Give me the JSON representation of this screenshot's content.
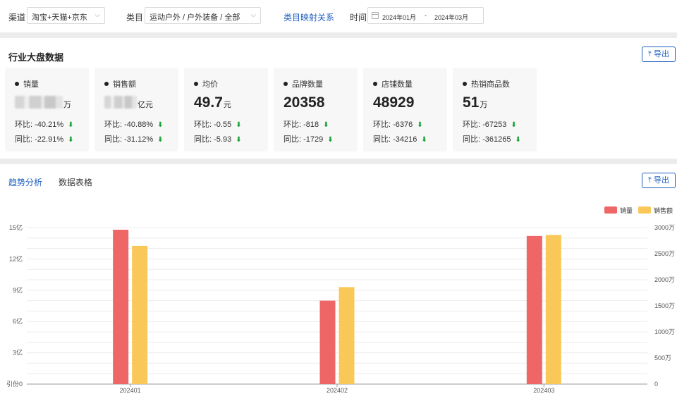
{
  "filters": {
    "channel_label": "渠道",
    "channel_value": "淘宝+天猫+京东",
    "category_label": "类目",
    "category_value": "运动户外 / 户外装备 / 全部",
    "mapping_link": "类目映射关系",
    "time_label": "时间",
    "date_start": "2024年01月",
    "date_sep": "-",
    "date_end": "2024年03月"
  },
  "overview": {
    "title": "行业大盘数据",
    "export_label": "导出",
    "metrics": [
      {
        "name": "销量",
        "value": "",
        "unit": "万",
        "hb_label": "环比:",
        "hb": "-40.21%",
        "tb_label": "同比:",
        "tb": "-22.91%",
        "blurred": true
      },
      {
        "name": "销售额",
        "value": "",
        "unit": "亿元",
        "hb_label": "环比:",
        "hb": "-40.88%",
        "tb_label": "同比:",
        "tb": "-31.12%",
        "blurred": true
      },
      {
        "name": "均价",
        "value": "49.7",
        "unit": "元",
        "hb_label": "环比:",
        "hb": "-0.55",
        "tb_label": "同比:",
        "tb": "-5.93"
      },
      {
        "name": "品牌数量",
        "value": "20358",
        "unit": "",
        "hb_label": "环比:",
        "hb": "-818",
        "tb_label": "同比:",
        "tb": "-1729"
      },
      {
        "name": "店铺数量",
        "value": "48929",
        "unit": "",
        "hb_label": "环比:",
        "hb": "-6376",
        "tb_label": "同比:",
        "tb": "-34216"
      },
      {
        "name": "热销商品数",
        "value": "51",
        "unit": "万",
        "hb_label": "环比:",
        "hb": "-67253",
        "tb_label": "同比:",
        "tb": "-361265"
      }
    ]
  },
  "trend": {
    "tab_trend": "趋势分析",
    "tab_table": "数据表格",
    "export_label": "导出"
  },
  "chart_data": {
    "type": "bar",
    "categories": [
      "202401",
      "202402",
      "202403"
    ],
    "series": [
      {
        "name": "销量",
        "axis": "left",
        "color": "#ee6666",
        "values": [
          14.8,
          8.0,
          14.2
        ]
      },
      {
        "name": "销售额",
        "axis": "right",
        "color": "#fac858",
        "values": [
          2650,
          1860,
          2860
        ]
      }
    ],
    "y_left": {
      "ticks": [
        "15亿",
        "12亿",
        "9亿",
        "6亿",
        "3亿",
        "0"
      ],
      "range": [
        0,
        15
      ]
    },
    "y_right": {
      "ticks": [
        "3000万",
        "2500万",
        "2000万",
        "1500万",
        "1000万",
        "500万",
        "0"
      ],
      "range": [
        0,
        3000
      ]
    },
    "left_axis_clipped_label": "引份",
    "legend_position": "top-right",
    "grid": true
  }
}
